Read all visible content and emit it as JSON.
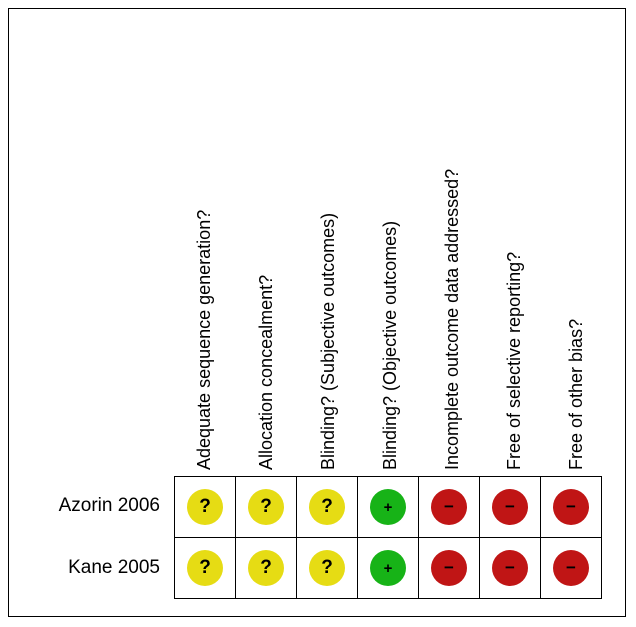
{
  "domains": [
    "Adequate sequence generation?",
    "Allocation concealment?",
    "Blinding? (Subjective outcomes)",
    "Blinding? (Objective outcomes)",
    "Incomplete outcome data addressed?",
    "Free of selective reporting?",
    "Free of other bias?"
  ],
  "studies": [
    {
      "name": "Azorin 2006",
      "ratings": [
        "unclear",
        "unclear",
        "unclear",
        "low",
        "high",
        "high",
        "high"
      ]
    },
    {
      "name": "Kane 2005",
      "ratings": [
        "unclear",
        "unclear",
        "unclear",
        "low",
        "high",
        "high",
        "high"
      ]
    }
  ],
  "symbols": {
    "unclear": "?",
    "low": "+",
    "high": "−"
  },
  "colors": {
    "unclear": "#e6dc14",
    "low": "#17b317",
    "high": "#c01515"
  }
}
